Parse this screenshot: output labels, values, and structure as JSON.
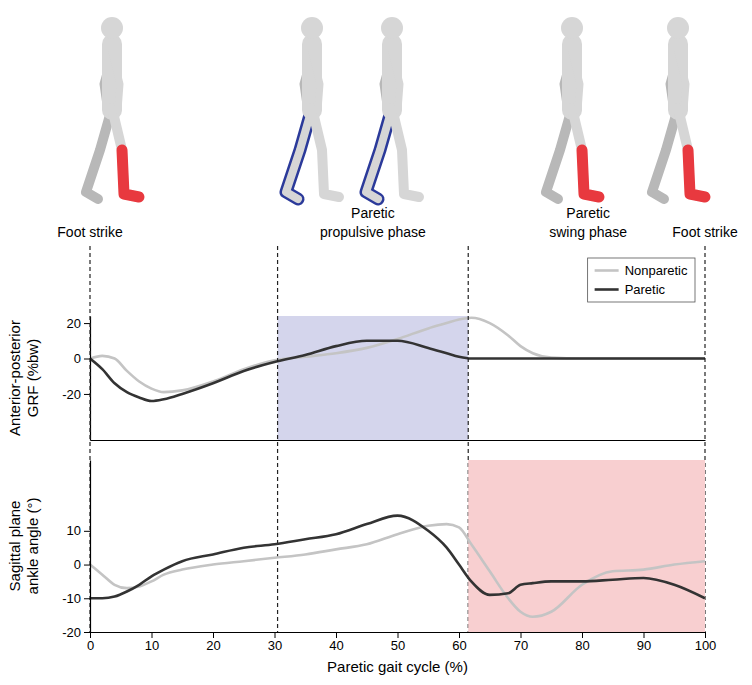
{
  "chart_data": [
    {
      "type": "line",
      "y_label": [
        "Anterior-posterior",
        "GRF (%bw)"
      ],
      "x": [
        0,
        2,
        4,
        6,
        8,
        10,
        12,
        15,
        20,
        25,
        30,
        35,
        40,
        45,
        50,
        55,
        58,
        60,
        62,
        65,
        68,
        70,
        72,
        75,
        80,
        85,
        90,
        95,
        100
      ],
      "series": [
        {
          "name": "Nonparetic",
          "color": "#c4c4c4",
          "values": [
            0,
            1.5,
            0,
            -7,
            -13,
            -17,
            -19,
            -18,
            -13,
            -6,
            -1,
            1,
            3,
            6,
            11,
            17,
            20,
            22,
            23,
            20,
            13,
            7,
            3,
            0.5,
            0,
            0,
            0,
            0,
            0
          ]
        },
        {
          "name": "Paretic",
          "color": "#333333",
          "values": [
            0,
            -6,
            -14,
            -19,
            -22,
            -24,
            -23,
            -20,
            -14,
            -7,
            -2,
            2,
            7,
            10,
            10,
            6,
            3,
            1,
            0,
            0,
            0,
            0,
            0,
            0,
            0,
            0,
            0,
            0,
            0
          ]
        }
      ],
      "xlim": [
        0,
        100
      ],
      "ylim": [
        -46,
        24
      ],
      "yticks": [
        -20,
        0,
        20
      ],
      "tick_labels": "y",
      "legend": "upper right",
      "shaded_region": {
        "x": [
          30.5,
          61.5
        ],
        "color": "#d4d5ec"
      },
      "phase_boundaries": [
        0,
        30.5,
        61.5,
        100
      ],
      "annotations": [
        {
          "text": [
            "Foot strike"
          ],
          "x": 0
        },
        {
          "text": [
            "Paretic",
            "propulsive phase"
          ],
          "x": 46
        },
        {
          "text": [
            "Paretic",
            "swing phase"
          ],
          "x": 81
        },
        {
          "text": [
            "Foot strike"
          ],
          "x": 100
        }
      ]
    },
    {
      "type": "line",
      "x_label": "Paretic gait cycle (%)",
      "y_label": [
        "Sagittal plane",
        "ankle angle (°)"
      ],
      "x": [
        0,
        2,
        4,
        6,
        8,
        10,
        12,
        15,
        20,
        25,
        30,
        35,
        40,
        45,
        50,
        55,
        58,
        60,
        62,
        65,
        68,
        70,
        72,
        75,
        80,
        85,
        90,
        95,
        100
      ],
      "series": [
        {
          "color": "#c4c4c4",
          "values": [
            0,
            -3,
            -6,
            -7,
            -6.5,
            -5,
            -3,
            -1.5,
            0,
            1,
            2,
            3,
            4.5,
            6,
            9,
            11.5,
            12,
            11,
            6,
            -2,
            -10,
            -14,
            -15.5,
            -14,
            -6,
            -2,
            -1.5,
            0,
            1
          ]
        },
        {
          "color": "#333333",
          "values": [
            -10,
            -10,
            -9.5,
            -8,
            -6,
            -3.5,
            -1.5,
            1,
            3,
            5,
            6,
            7.5,
            9,
            12,
            14.5,
            10,
            5,
            0,
            -5,
            -9,
            -8.5,
            -6,
            -5.5,
            -5,
            -5,
            -4.5,
            -4,
            -6,
            -10
          ]
        }
      ],
      "xlim": [
        0,
        100
      ],
      "ylim": [
        -20,
        31
      ],
      "xticks": [
        0,
        10,
        20,
        30,
        40,
        50,
        60,
        70,
        80,
        90,
        100
      ],
      "yticks": [
        -20,
        -10,
        0,
        10
      ],
      "shaded_region": {
        "x": [
          61.5,
          100
        ],
        "color": "#f8cfd0"
      }
    }
  ]
}
